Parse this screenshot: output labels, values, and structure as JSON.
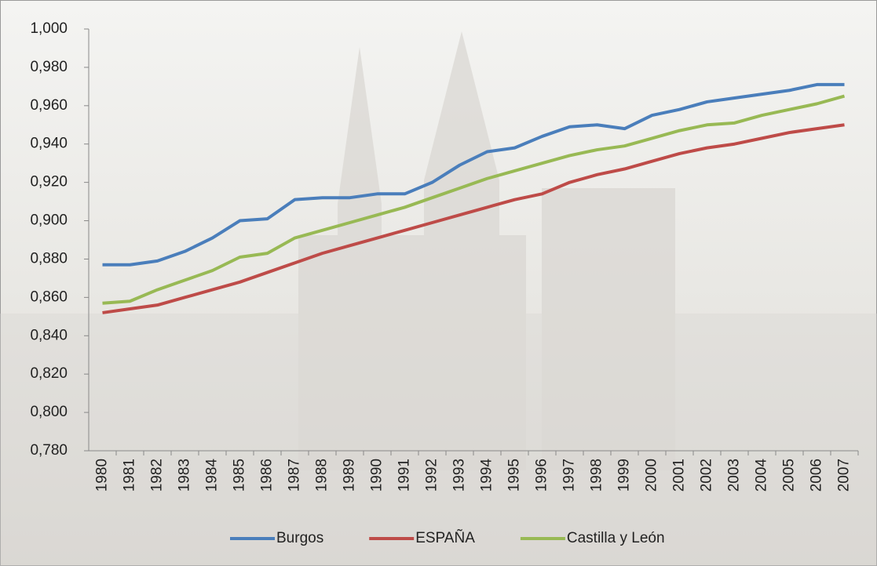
{
  "chart_data": {
    "type": "line",
    "categories": [
      "1980",
      "1981",
      "1982",
      "1983",
      "1984",
      "1985",
      "1986",
      "1987",
      "1988",
      "1989",
      "1990",
      "1991",
      "1992",
      "1993",
      "1994",
      "1995",
      "1996",
      "1997",
      "1998",
      "1999",
      "2000",
      "2001",
      "2002",
      "2003",
      "2004",
      "2005",
      "2006",
      "2007"
    ],
    "series": [
      {
        "name": "Burgos",
        "color": "#4a7ebb",
        "values": [
          0.877,
          0.877,
          0.879,
          0.884,
          0.891,
          0.9,
          0.901,
          0.911,
          0.912,
          0.912,
          0.914,
          0.914,
          0.92,
          0.929,
          0.936,
          0.938,
          0.944,
          0.949,
          0.95,
          0.948,
          0.955,
          0.958,
          0.962,
          0.964,
          0.966,
          0.968,
          0.971,
          0.971
        ]
      },
      {
        "name": "ESPAÑA",
        "color": "#be4b48",
        "values": [
          0.852,
          0.854,
          0.856,
          0.86,
          0.864,
          0.868,
          0.873,
          0.878,
          0.883,
          0.887,
          0.891,
          0.895,
          0.899,
          0.903,
          0.907,
          0.911,
          0.914,
          0.92,
          0.924,
          0.927,
          0.931,
          0.935,
          0.938,
          0.94,
          0.943,
          0.946,
          0.948,
          0.95
        ]
      },
      {
        "name": "Castilla y León",
        "color": "#98b954",
        "values": [
          0.857,
          0.858,
          0.864,
          0.869,
          0.874,
          0.881,
          0.883,
          0.891,
          0.895,
          0.899,
          0.903,
          0.907,
          0.912,
          0.917,
          0.922,
          0.926,
          0.93,
          0.934,
          0.937,
          0.939,
          0.943,
          0.947,
          0.95,
          0.951,
          0.955,
          0.958,
          0.961,
          0.965
        ]
      }
    ],
    "ylim": [
      0.78,
      1.0
    ],
    "yticks": [
      {
        "value": 0.78,
        "label": "0,780"
      },
      {
        "value": 0.8,
        "label": "0,800"
      },
      {
        "value": 0.82,
        "label": "0,820"
      },
      {
        "value": 0.84,
        "label": "0,840"
      },
      {
        "value": 0.86,
        "label": "0,860"
      },
      {
        "value": 0.88,
        "label": "0,880"
      },
      {
        "value": 0.9,
        "label": "0,900"
      },
      {
        "value": 0.92,
        "label": "0,920"
      },
      {
        "value": 0.94,
        "label": "0,940"
      },
      {
        "value": 0.96,
        "label": "0,960"
      },
      {
        "value": 0.98,
        "label": "0,980"
      },
      {
        "value": 1.0,
        "label": "1,000"
      }
    ],
    "grid": false,
    "legend": "bottom"
  }
}
